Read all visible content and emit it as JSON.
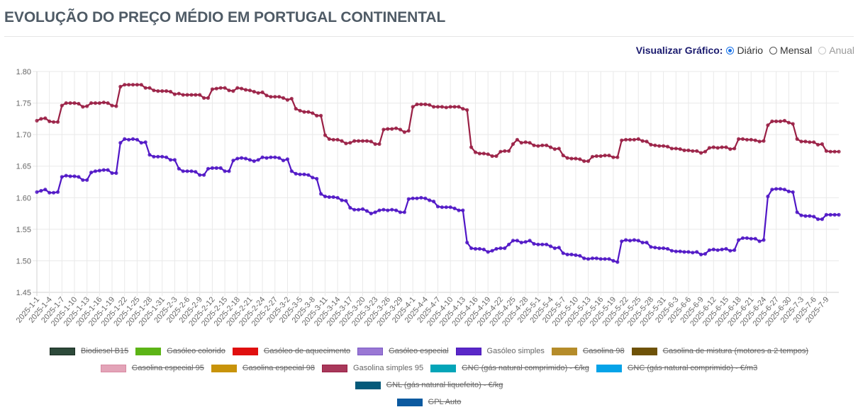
{
  "header": {
    "title": "EVOLUÇÃO DO PREÇO MÉDIO EM PORTUGAL CONTINENTAL"
  },
  "view_controls": {
    "label": "Visualizar Gráfico:",
    "options": [
      {
        "label": "Diário",
        "state": "checked"
      },
      {
        "label": "Mensal",
        "state": "unchecked"
      },
      {
        "label": "Anual",
        "state": "disabled"
      }
    ]
  },
  "legend": [
    {
      "label": "Biodiesel B15",
      "color": "#2d4a3a",
      "border": "#1a2e22",
      "hidden": true
    },
    {
      "label": "Gasóleo colorido",
      "color": "#5cb416",
      "border": "#5cb416",
      "hidden": true
    },
    {
      "label": "Gasóleo de aquecimento",
      "color": "#e00f0f",
      "border": "#e00f0f",
      "hidden": true
    },
    {
      "label": "Gasóleo especial",
      "color": "#9a78d4",
      "border": "#7a58c4",
      "hidden": true
    },
    {
      "label": "Gasóleo simples",
      "color": "#5a28c8",
      "border": "#4a18b8",
      "hidden": false
    },
    {
      "label": "Gasolina 98",
      "color": "#b58c2a",
      "border": "#b58c2a",
      "hidden": true
    },
    {
      "label": "Gasolina de mistura (motores a 2 tempos)",
      "color": "#6e5208",
      "border": "#6e5208",
      "hidden": true
    },
    {
      "label": "Gasolina especial 95",
      "color": "#e3a4b8",
      "border": "#d98aa2",
      "hidden": true
    },
    {
      "label": "Gasolina especial 98",
      "color": "#c8930a",
      "border": "#c8930a",
      "hidden": true
    },
    {
      "label": "Gasolina simples 95",
      "color": "#a8385a",
      "border": "#9a2045",
      "hidden": false
    },
    {
      "label": "GNC (gás natural comprimido) - €/kg",
      "color": "#04a5b8",
      "border": "#04a5b8",
      "hidden": true
    },
    {
      "label": "GNC (gás natural comprimido) - €/m3",
      "color": "#06a3e8",
      "border": "#06a3e8",
      "hidden": true
    },
    {
      "label": "GNL (gás natural liquefeito) - €/kg",
      "color": "#055a7a",
      "border": "#055a7a",
      "hidden": true
    },
    {
      "label": "GPL Auto",
      "color": "#0c5aa0",
      "border": "#0c5aa0",
      "hidden": true
    }
  ],
  "chart_data": {
    "type": "line",
    "title": "EVOLUÇÃO DO PREÇO MÉDIO EM PORTUGAL CONTINENTAL",
    "xlabel": "",
    "ylabel": "",
    "ylim": [
      1.45,
      1.8
    ],
    "yticks": [
      "1.80",
      "1.75",
      "1.70",
      "1.65",
      "1.60",
      "1.55",
      "1.50",
      "1.45"
    ],
    "grid": true,
    "legend_position": "bottom",
    "x_start": "2025-1-1",
    "x_end": "2025-7-9",
    "x_tick_labels": [
      "2025-1-1",
      "2025-1-4",
      "2025-1-7",
      "2025-1-10",
      "2025-1-13",
      "2025-1-16",
      "2025-1-19",
      "2025-1-22",
      "2025-1-25",
      "2025-1-28",
      "2025-1-31",
      "2025-2-3",
      "2025-2-6",
      "2025-2-9",
      "2025-2-12",
      "2025-2-15",
      "2025-2-18",
      "2025-2-21",
      "2025-2-24",
      "2025-2-27",
      "2025-3-2",
      "2025-3-5",
      "2025-3-8",
      "2025-3-11",
      "2025-3-14",
      "2025-3-17",
      "2025-3-20",
      "2025-3-23",
      "2025-3-26",
      "2025-3-29",
      "2025-4-1",
      "2025-4-4",
      "2025-4-7",
      "2025-4-10",
      "2025-4-13",
      "2025-4-16",
      "2025-4-19",
      "2025-4-22",
      "2025-4-25",
      "2025-4-28",
      "2025-5-1",
      "2025-5-4",
      "2025-5-7",
      "2025-5-10",
      "2025-5-13",
      "2025-5-16",
      "2025-5-19",
      "2025-5-22",
      "2025-5-25",
      "2025-5-28",
      "2025-5-31",
      "2025-6-3",
      "2025-6-6",
      "2025-6-9",
      "2025-6-12",
      "2025-6-15",
      "2025-6-18",
      "2025-6-21",
      "2025-6-24",
      "2025-6-27",
      "2025-6-30",
      "2025-7-3",
      "2025-7-6",
      "2025-7-9"
    ],
    "series": [
      {
        "name": "Gasolina simples 95",
        "color": "#9a2045",
        "values": [
          1.722,
          1.725,
          1.726,
          1.721,
          1.72,
          1.72,
          1.746,
          1.75,
          1.75,
          1.75,
          1.749,
          1.744,
          1.745,
          1.75,
          1.75,
          1.75,
          1.751,
          1.75,
          1.746,
          1.745,
          1.776,
          1.779,
          1.779,
          1.779,
          1.779,
          1.779,
          1.774,
          1.774,
          1.77,
          1.769,
          1.769,
          1.769,
          1.768,
          1.764,
          1.765,
          1.763,
          1.763,
          1.763,
          1.763,
          1.763,
          1.758,
          1.758,
          1.772,
          1.773,
          1.774,
          1.774,
          1.77,
          1.769,
          1.774,
          1.773,
          1.771,
          1.77,
          1.768,
          1.766,
          1.767,
          1.762,
          1.76,
          1.76,
          1.76,
          1.758,
          1.755,
          1.757,
          1.741,
          1.738,
          1.736,
          1.736,
          1.734,
          1.73,
          1.73,
          1.699,
          1.693,
          1.692,
          1.692,
          1.69,
          1.686,
          1.687,
          1.69,
          1.69,
          1.69,
          1.69,
          1.689,
          1.685,
          1.685,
          1.708,
          1.709,
          1.709,
          1.71,
          1.708,
          1.704,
          1.706,
          1.744,
          1.748,
          1.748,
          1.748,
          1.747,
          1.744,
          1.744,
          1.744,
          1.743,
          1.744,
          1.744,
          1.744,
          1.741,
          1.739,
          1.68,
          1.672,
          1.67,
          1.67,
          1.669,
          1.666,
          1.666,
          1.673,
          1.674,
          1.674,
          1.685,
          1.692,
          1.687,
          1.688,
          1.687,
          1.683,
          1.682,
          1.683,
          1.683,
          1.68,
          1.677,
          1.678,
          1.667,
          1.663,
          1.662,
          1.662,
          1.661,
          1.658,
          1.658,
          1.665,
          1.666,
          1.666,
          1.667,
          1.667,
          1.664,
          1.664,
          1.691,
          1.692,
          1.692,
          1.692,
          1.693,
          1.69,
          1.689,
          1.684,
          1.683,
          1.682,
          1.682,
          1.681,
          1.678,
          1.678,
          1.677,
          1.675,
          1.675,
          1.674,
          1.674,
          1.671,
          1.673,
          1.679,
          1.68,
          1.679,
          1.68,
          1.68,
          1.677,
          1.678,
          1.693,
          1.693,
          1.692,
          1.692,
          1.691,
          1.689,
          1.69,
          1.715,
          1.721,
          1.721,
          1.721,
          1.722,
          1.719,
          1.717,
          1.693,
          1.689,
          1.689,
          1.688,
          1.688,
          1.684,
          1.685,
          1.674,
          1.673,
          1.673,
          1.673
        ]
      },
      {
        "name": "Gasóleo simples",
        "color": "#5016c6",
        "values": [
          1.609,
          1.611,
          1.613,
          1.608,
          1.608,
          1.609,
          1.633,
          1.635,
          1.634,
          1.634,
          1.633,
          1.628,
          1.628,
          1.64,
          1.642,
          1.643,
          1.644,
          1.644,
          1.639,
          1.639,
          1.687,
          1.693,
          1.692,
          1.693,
          1.692,
          1.687,
          1.688,
          1.668,
          1.665,
          1.665,
          1.665,
          1.664,
          1.66,
          1.66,
          1.646,
          1.642,
          1.642,
          1.642,
          1.641,
          1.636,
          1.636,
          1.646,
          1.647,
          1.647,
          1.647,
          1.642,
          1.642,
          1.659,
          1.662,
          1.663,
          1.662,
          1.66,
          1.658,
          1.66,
          1.664,
          1.663,
          1.664,
          1.664,
          1.663,
          1.659,
          1.661,
          1.642,
          1.638,
          1.637,
          1.637,
          1.636,
          1.632,
          1.63,
          1.606,
          1.602,
          1.601,
          1.601,
          1.6,
          1.596,
          1.595,
          1.584,
          1.581,
          1.581,
          1.582,
          1.579,
          1.575,
          1.577,
          1.58,
          1.581,
          1.58,
          1.581,
          1.58,
          1.577,
          1.577,
          1.598,
          1.599,
          1.599,
          1.6,
          1.599,
          1.596,
          1.594,
          1.586,
          1.585,
          1.585,
          1.585,
          1.583,
          1.58,
          1.58,
          1.529,
          1.52,
          1.519,
          1.519,
          1.518,
          1.514,
          1.516,
          1.519,
          1.52,
          1.52,
          1.526,
          1.532,
          1.532,
          1.529,
          1.53,
          1.532,
          1.527,
          1.526,
          1.526,
          1.526,
          1.523,
          1.52,
          1.521,
          1.512,
          1.51,
          1.51,
          1.509,
          1.508,
          1.504,
          1.503,
          1.504,
          1.504,
          1.503,
          1.503,
          1.503,
          1.5,
          1.498,
          1.531,
          1.533,
          1.532,
          1.533,
          1.532,
          1.529,
          1.529,
          1.522,
          1.521,
          1.52,
          1.52,
          1.519,
          1.516,
          1.515,
          1.515,
          1.514,
          1.514,
          1.513,
          1.514,
          1.51,
          1.511,
          1.517,
          1.518,
          1.517,
          1.518,
          1.519,
          1.516,
          1.517,
          1.533,
          1.536,
          1.536,
          1.535,
          1.535,
          1.531,
          1.533,
          1.602,
          1.613,
          1.614,
          1.614,
          1.613,
          1.61,
          1.609,
          1.577,
          1.572,
          1.571,
          1.571,
          1.57,
          1.566,
          1.566,
          1.573,
          1.573,
          1.573,
          1.573
        ]
      }
    ]
  }
}
